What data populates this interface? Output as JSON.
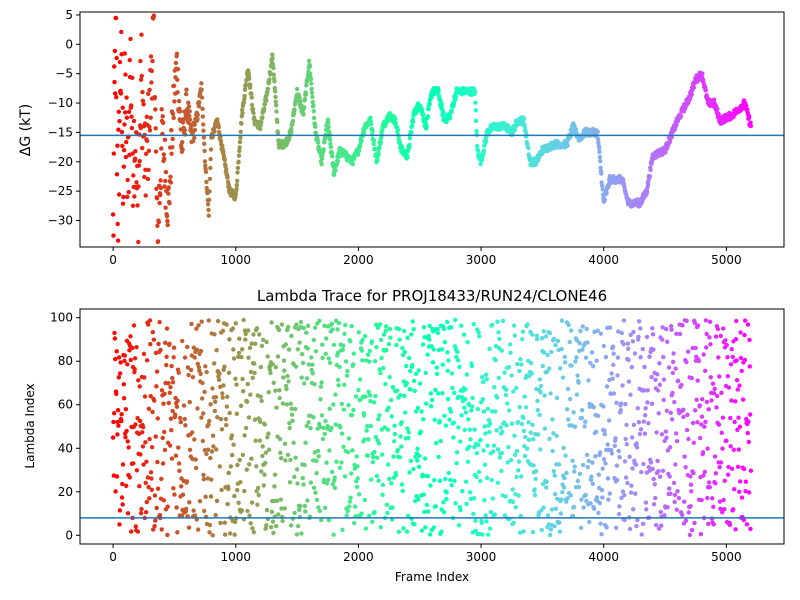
{
  "figure": {
    "background": "#ffffff",
    "hline_color": "#1f77b4",
    "colormap": "rainbow (reversed: red = start, violet = end)"
  },
  "chart_data": [
    {
      "type": "scatter",
      "title": "",
      "xlabel": "",
      "ylabel": "ΔG (kT)",
      "xlim": [
        -270,
        5470
      ],
      "ylim": [
        -34.5,
        5.5
      ],
      "xticks": [
        0,
        1000,
        2000,
        3000,
        4000,
        5000
      ],
      "xtick_labels": [
        "0",
        "1000",
        "2000",
        "3000",
        "4000",
        "5000"
      ],
      "yticks": [
        5,
        0,
        -5,
        -10,
        -15,
        -20,
        -25,
        -30
      ],
      "ytick_labels": [
        "5",
        "0",
        "−5",
        "−10",
        "−15",
        "−20",
        "−25",
        "−30"
      ],
      "hline": -15.5,
      "grid": false,
      "legend": "none",
      "x_max": 5200,
      "profile": [
        [
          0,
          -33
        ],
        [
          20,
          5
        ],
        [
          40,
          -28
        ],
        [
          60,
          -2
        ],
        [
          80,
          -20
        ],
        [
          100,
          -10
        ],
        [
          120,
          -25
        ],
        [
          140,
          -2
        ],
        [
          160,
          -18
        ],
        [
          180,
          -15
        ],
        [
          200,
          -30
        ],
        [
          230,
          -5
        ],
        [
          260,
          -22
        ],
        [
          300,
          -12
        ],
        [
          330,
          5
        ],
        [
          360,
          -34
        ],
        [
          400,
          -15
        ],
        [
          450,
          -28
        ],
        [
          500,
          -8
        ],
        [
          520,
          -3
        ],
        [
          560,
          -18
        ],
        [
          600,
          -10
        ],
        [
          640,
          -16
        ],
        [
          680,
          -13
        ],
        [
          720,
          -7
        ],
        [
          750,
          -20
        ],
        [
          780,
          -29
        ],
        [
          800,
          -16
        ],
        [
          850,
          -13
        ],
        [
          900,
          -19
        ],
        [
          950,
          -25
        ],
        [
          1000,
          -26
        ],
        [
          1050,
          -12
        ],
        [
          1100,
          -4
        ],
        [
          1150,
          -13
        ],
        [
          1200,
          -14
        ],
        [
          1250,
          -9
        ],
        [
          1300,
          -2
        ],
        [
          1350,
          -17
        ],
        [
          1400,
          -17
        ],
        [
          1450,
          -15
        ],
        [
          1500,
          -8
        ],
        [
          1550,
          -12
        ],
        [
          1600,
          -3
        ],
        [
          1650,
          -15
        ],
        [
          1700,
          -20
        ],
        [
          1750,
          -13
        ],
        [
          1800,
          -22
        ],
        [
          1850,
          -18
        ],
        [
          1900,
          -19
        ],
        [
          1950,
          -20
        ],
        [
          2000,
          -18
        ],
        [
          2050,
          -14
        ],
        [
          2100,
          -13
        ],
        [
          2150,
          -20
        ],
        [
          2200,
          -14
        ],
        [
          2250,
          -12
        ],
        [
          2300,
          -13
        ],
        [
          2350,
          -18
        ],
        [
          2400,
          -19
        ],
        [
          2450,
          -12
        ],
        [
          2500,
          -10
        ],
        [
          2550,
          -14
        ],
        [
          2600,
          -8
        ],
        [
          2650,
          -8
        ],
        [
          2700,
          -13
        ],
        [
          2750,
          -12
        ],
        [
          2800,
          -8
        ],
        [
          2850,
          -8
        ],
        [
          2900,
          -8
        ],
        [
          2950,
          -8
        ],
        [
          2970,
          -18
        ],
        [
          3000,
          -20
        ],
        [
          3050,
          -15
        ],
        [
          3100,
          -14
        ],
        [
          3200,
          -14
        ],
        [
          3250,
          -15
        ],
        [
          3300,
          -13
        ],
        [
          3350,
          -13
        ],
        [
          3400,
          -20
        ],
        [
          3450,
          -20
        ],
        [
          3500,
          -18
        ],
        [
          3600,
          -17
        ],
        [
          3700,
          -17
        ],
        [
          3750,
          -14
        ],
        [
          3800,
          -16
        ],
        [
          3850,
          -15
        ],
        [
          3950,
          -15
        ],
        [
          4000,
          -27
        ],
        [
          4050,
          -23
        ],
        [
          4150,
          -23
        ],
        [
          4200,
          -27
        ],
        [
          4300,
          -27
        ],
        [
          4350,
          -25
        ],
        [
          4400,
          -19
        ],
        [
          4500,
          -18
        ],
        [
          4600,
          -13
        ],
        [
          4700,
          -9
        ],
        [
          4750,
          -6
        ],
        [
          4800,
          -5
        ],
        [
          4850,
          -10
        ],
        [
          4900,
          -10
        ],
        [
          4950,
          -13
        ],
        [
          5050,
          -12
        ],
        [
          5100,
          -11
        ],
        [
          5150,
          -10
        ],
        [
          5200,
          -14
        ]
      ]
    },
    {
      "type": "scatter",
      "title": "Lambda Trace for PROJ18433/RUN24/CLONE46",
      "xlabel": "Frame Index",
      "ylabel": "Lambda Index",
      "xlim": [
        -270,
        5470
      ],
      "ylim": [
        -4,
        104
      ],
      "xticks": [
        0,
        1000,
        2000,
        3000,
        4000,
        5000
      ],
      "xtick_labels": [
        "0",
        "1000",
        "2000",
        "3000",
        "4000",
        "5000"
      ],
      "yticks": [
        0,
        20,
        40,
        60,
        80,
        100
      ],
      "ytick_labels": [
        "0",
        "20",
        "40",
        "60",
        "80",
        "100"
      ],
      "hline": 8,
      "grid": false,
      "legend": "none",
      "x_max": 5200,
      "range": [
        0,
        99
      ]
    }
  ]
}
